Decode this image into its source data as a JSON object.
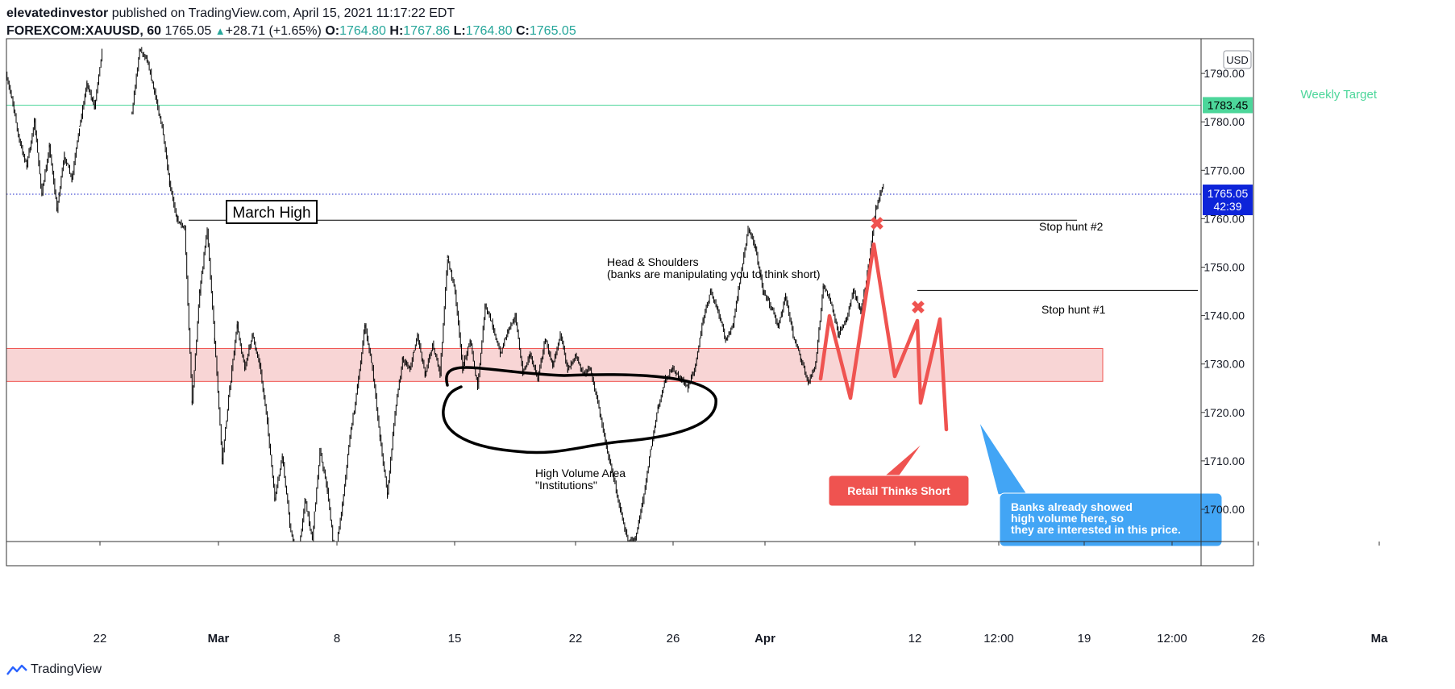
{
  "header": {
    "user": "elevatedinvestor",
    "published": "published on TradingView.com, April 15, 2021 11:17:22 EDT",
    "symbol": "FOREXCOM:XAUUSD, 60",
    "last": "1765.05",
    "change": "+28.71 (+1.65%)",
    "o_label": "O:",
    "o_value": "1764.80",
    "h_label": "H:",
    "h_value": "1767.86",
    "l_label": "L:",
    "l_value": "1764.80",
    "c_label": "C:",
    "c_value": "1765.05"
  },
  "footer": {
    "brand": "TradingView"
  },
  "colors": {
    "target": "#4cd69a",
    "zone_fill": "#f8d5d5",
    "zone_stroke": "#ef5350",
    "retail": "#ef5350",
    "banks": "#42a5f5",
    "price_tag": "#0d24d9",
    "last_line": "#1a24c9",
    "candle": "#000000"
  },
  "chart_data": {
    "type": "candlestick",
    "symbol": "FOREXCOM:XAUUSD",
    "interval": "60",
    "currency": "USD",
    "ylim": [
      1691,
      1795
    ],
    "y_ticks": [
      1700,
      1710,
      1720,
      1730,
      1740,
      1750,
      1760,
      1770,
      1780,
      1790
    ],
    "y_tick_labels": [
      "1700.00",
      "1710.00",
      "1720.00",
      "1730.00",
      "1740.00",
      "1750.00",
      "1760.00",
      "1770.00",
      "1780.00",
      "1790.00"
    ],
    "x_ticks": [
      {
        "label": "22",
        "bold": false
      },
      {
        "label": "Mar",
        "bold": true
      },
      {
        "label": "8",
        "bold": false
      },
      {
        "label": "15",
        "bold": false
      },
      {
        "label": "22",
        "bold": false
      },
      {
        "label": "26",
        "bold": false
      },
      {
        "label": "Apr",
        "bold": true
      },
      {
        "label": "12",
        "bold": false
      },
      {
        "label": "12:00",
        "bold": false
      },
      {
        "label": "19",
        "bold": false
      },
      {
        "label": "12:00",
        "bold": false
      },
      {
        "label": "26",
        "bold": false
      },
      {
        "label": "Ma",
        "bold": true
      }
    ],
    "price_path": [
      [
        -2,
        1795
      ],
      [
        1,
        1785
      ],
      [
        3,
        1776
      ],
      [
        5,
        1771
      ],
      [
        7,
        1780
      ],
      [
        9,
        1765
      ],
      [
        11,
        1775
      ],
      [
        13,
        1762
      ],
      [
        15,
        1773
      ],
      [
        17,
        1768
      ],
      [
        19,
        1779
      ],
      [
        21,
        1788
      ],
      [
        23,
        1783
      ],
      [
        25,
        1795
      ],
      [
        33,
        1782
      ],
      [
        35,
        1795
      ],
      [
        37,
        1793
      ],
      [
        39,
        1786
      ],
      [
        41,
        1779
      ],
      [
        43,
        1767
      ],
      [
        45,
        1760
      ],
      [
        47,
        1758
      ],
      [
        49,
        1722
      ],
      [
        51,
        1745
      ],
      [
        53,
        1758
      ],
      [
        55,
        1735
      ],
      [
        57,
        1710
      ],
      [
        59,
        1725
      ],
      [
        61,
        1738
      ],
      [
        63,
        1729
      ],
      [
        65,
        1736
      ],
      [
        67,
        1730
      ],
      [
        69,
        1718
      ],
      [
        71,
        1702
      ],
      [
        73,
        1711
      ],
      [
        75,
        1697
      ],
      [
        77,
        1688
      ],
      [
        79,
        1702
      ],
      [
        81,
        1694
      ],
      [
        83,
        1712
      ],
      [
        85,
        1704
      ],
      [
        87,
        1690
      ],
      [
        89,
        1701
      ],
      [
        91,
        1715
      ],
      [
        93,
        1725
      ],
      [
        95,
        1738
      ],
      [
        97,
        1729
      ],
      [
        99,
        1715
      ],
      [
        101,
        1703
      ],
      [
        103,
        1720
      ],
      [
        105,
        1731
      ],
      [
        107,
        1729
      ],
      [
        109,
        1736
      ],
      [
        111,
        1728
      ],
      [
        113,
        1734
      ],
      [
        115,
        1728
      ],
      [
        117,
        1752
      ],
      [
        119,
        1745
      ],
      [
        121,
        1729
      ],
      [
        123,
        1735
      ],
      [
        125,
        1725
      ],
      [
        127,
        1742
      ],
      [
        129,
        1738
      ],
      [
        131,
        1732
      ],
      [
        133,
        1737
      ],
      [
        135,
        1740
      ],
      [
        137,
        1728
      ],
      [
        139,
        1732
      ],
      [
        141,
        1727
      ],
      [
        143,
        1735
      ],
      [
        145,
        1730
      ],
      [
        147,
        1736
      ],
      [
        149,
        1729
      ],
      [
        151,
        1732
      ],
      [
        153,
        1728
      ],
      [
        155,
        1729
      ],
      [
        157,
        1722
      ],
      [
        159,
        1714
      ],
      [
        161,
        1707
      ],
      [
        163,
        1700
      ],
      [
        165,
        1693
      ],
      [
        167,
        1694
      ],
      [
        169,
        1702
      ],
      [
        171,
        1712
      ],
      [
        173,
        1721
      ],
      [
        175,
        1727
      ],
      [
        177,
        1729
      ],
      [
        179,
        1727
      ],
      [
        181,
        1725
      ],
      [
        183,
        1730
      ],
      [
        185,
        1739
      ],
      [
        187,
        1745
      ],
      [
        189,
        1741
      ],
      [
        191,
        1735
      ],
      [
        193,
        1738
      ],
      [
        195,
        1748
      ],
      [
        197,
        1758
      ],
      [
        199,
        1754
      ],
      [
        201,
        1745
      ],
      [
        203,
        1742
      ],
      [
        205,
        1738
      ],
      [
        207,
        1744
      ],
      [
        209,
        1736
      ],
      [
        211,
        1731
      ],
      [
        213,
        1726
      ],
      [
        215,
        1730
      ],
      [
        217,
        1746
      ],
      [
        219,
        1743
      ],
      [
        221,
        1736
      ],
      [
        223,
        1739
      ],
      [
        225,
        1745
      ],
      [
        227,
        1741
      ],
      [
        229,
        1750
      ],
      [
        231,
        1762
      ],
      [
        233,
        1767
      ]
    ],
    "levels": {
      "weekly_target": 1783.45,
      "last_price": 1765.05,
      "march_high": 1759.7,
      "stop_hunt_1": 1745.2,
      "zone_top": 1733.2,
      "zone_bottom": 1726.4
    },
    "price_tags": [
      {
        "value": "1783.45",
        "kind": "target"
      },
      {
        "value": "1765.05",
        "sub": "42:39",
        "kind": "last"
      }
    ]
  },
  "annotations": {
    "weekly_target": "Weekly Target",
    "march_high": "March High",
    "stop_hunt_2": "Stop hunt #2",
    "stop_hunt_1": "Stop hunt #1",
    "hs_line1": "Head & Shoulders",
    "hs_line2": "(banks are manipulating you to think short)",
    "hv_line1": "High Volume Area",
    "hv_line2": "\"Institutions\"",
    "retail": "Retail Thinks Short",
    "banks_line1": "Banks already showed",
    "banks_line2": "high volume here, so",
    "banks_line3": "they are interested in this price.",
    "x_mark": "✖",
    "currency": "USD"
  }
}
